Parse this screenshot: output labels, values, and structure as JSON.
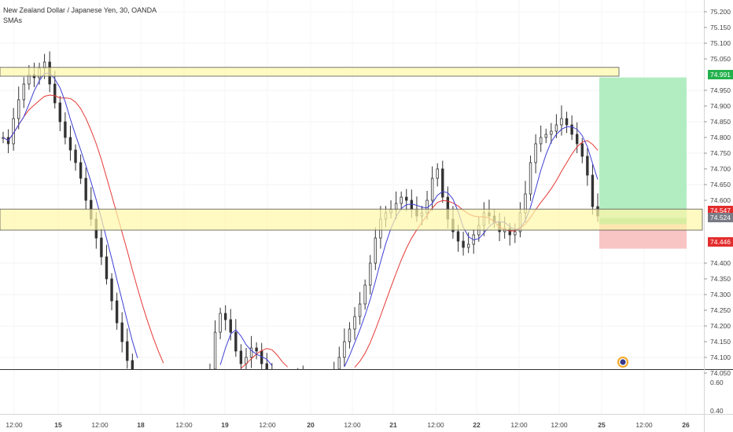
{
  "header": {
    "title": "New Zealand Dollar / Japanese Yen, 30, OANDA",
    "indicator": "SMAs"
  },
  "colors": {
    "up": "#26a69a",
    "candle": "#333333",
    "sma_fast": "#3f3fd6",
    "sma_slow": "#e53935",
    "zone_fill": "#fff7a8",
    "zone_stroke": "#555555",
    "target_fill": "#b2edc1",
    "stop_fill": "#f9c4c4",
    "tag_green": "#22b14c",
    "tag_red": "#e32d2d",
    "tag_gray": "#787b86"
  },
  "chart_data": {
    "type": "candlestick",
    "symbol": "New Zealand Dollar / Japanese Yen",
    "timeframe": "30",
    "source": "OANDA",
    "x_tick_labels": [
      "12:00",
      "15",
      "12:00",
      "18",
      "12:00",
      "19",
      "12:00",
      "20",
      "12:00",
      "21",
      "12:00",
      "22",
      "12:00",
      "12:00",
      "25",
      "12:00",
      "26",
      "12:00"
    ],
    "y_tick_labels": [
      "75.200",
      "75.150",
      "75.100",
      "75.050",
      "74.950",
      "74.900",
      "74.850",
      "74.800",
      "74.750",
      "74.700",
      "74.650",
      "74.600",
      "74.400",
      "74.350",
      "74.300",
      "74.250",
      "74.200",
      "74.150",
      "74.100",
      "74.050"
    ],
    "ylim": [
      74.03,
      75.23
    ],
    "price_tags": [
      {
        "label": "74.991",
        "value": 74.991,
        "color": "green"
      },
      {
        "label": "74.547",
        "value": 74.547,
        "color": "red"
      },
      {
        "label": "74.524",
        "value": 74.524,
        "color": "gray"
      },
      {
        "label": "74.446",
        "value": 74.446,
        "color": "red"
      }
    ],
    "zones": [
      {
        "from": 74.995,
        "to": 75.023
      },
      {
        "from": 74.505,
        "to": 74.572
      }
    ],
    "position": {
      "entry": 74.524,
      "target": 74.991,
      "stop": 74.446
    },
    "sub_pane": {
      "y_tick_labels": [
        "0.60",
        "0.40"
      ],
      "ylim": [
        0.35,
        0.72
      ]
    },
    "series": [
      {
        "type": "candles",
        "approximate_close": [
          74.8,
          74.78,
          74.86,
          74.92,
          74.97,
          75.0,
          74.99,
          75.02,
          75.04,
          74.97,
          74.91,
          74.85,
          74.8,
          74.76,
          74.72,
          74.67,
          74.6,
          74.54,
          74.48,
          74.42,
          74.35,
          74.28,
          74.21,
          74.15,
          74.09,
          74.03,
          74.01,
          74.0,
          73.98,
          73.97,
          73.96,
          73.95,
          73.94,
          73.92,
          73.92,
          73.93,
          73.93,
          73.94,
          73.95,
          73.96,
          74.05,
          74.18,
          74.24,
          74.22,
          74.18,
          74.12,
          74.08,
          74.1,
          74.13,
          74.12,
          74.08,
          74.04,
          74.0,
          73.98,
          73.98,
          74.02,
          74.03,
          74.04,
          74.02,
          74.0,
          73.99,
          74.0,
          74.01,
          74.03,
          74.06,
          74.1,
          74.15,
          74.19,
          74.23,
          74.27,
          74.33,
          74.4,
          74.48,
          74.54,
          74.56,
          74.57,
          74.59,
          74.61,
          74.6,
          74.57,
          74.55,
          74.56,
          74.6,
          74.67,
          74.7,
          74.61,
          74.54,
          74.5,
          74.47,
          74.45,
          74.46,
          74.49,
          74.52,
          74.56,
          74.55,
          74.53,
          74.5,
          74.51,
          74.49,
          74.5,
          74.56,
          74.62,
          74.72,
          74.78,
          74.8,
          74.81,
          74.82,
          74.84,
          74.86,
          74.84,
          74.81,
          74.78,
          74.74,
          74.68,
          74.58,
          74.55
        ]
      },
      {
        "type": "line",
        "indicator": "SMA fast",
        "color": "blue"
      },
      {
        "type": "line",
        "indicator": "SMA slow",
        "color": "red"
      }
    ]
  }
}
